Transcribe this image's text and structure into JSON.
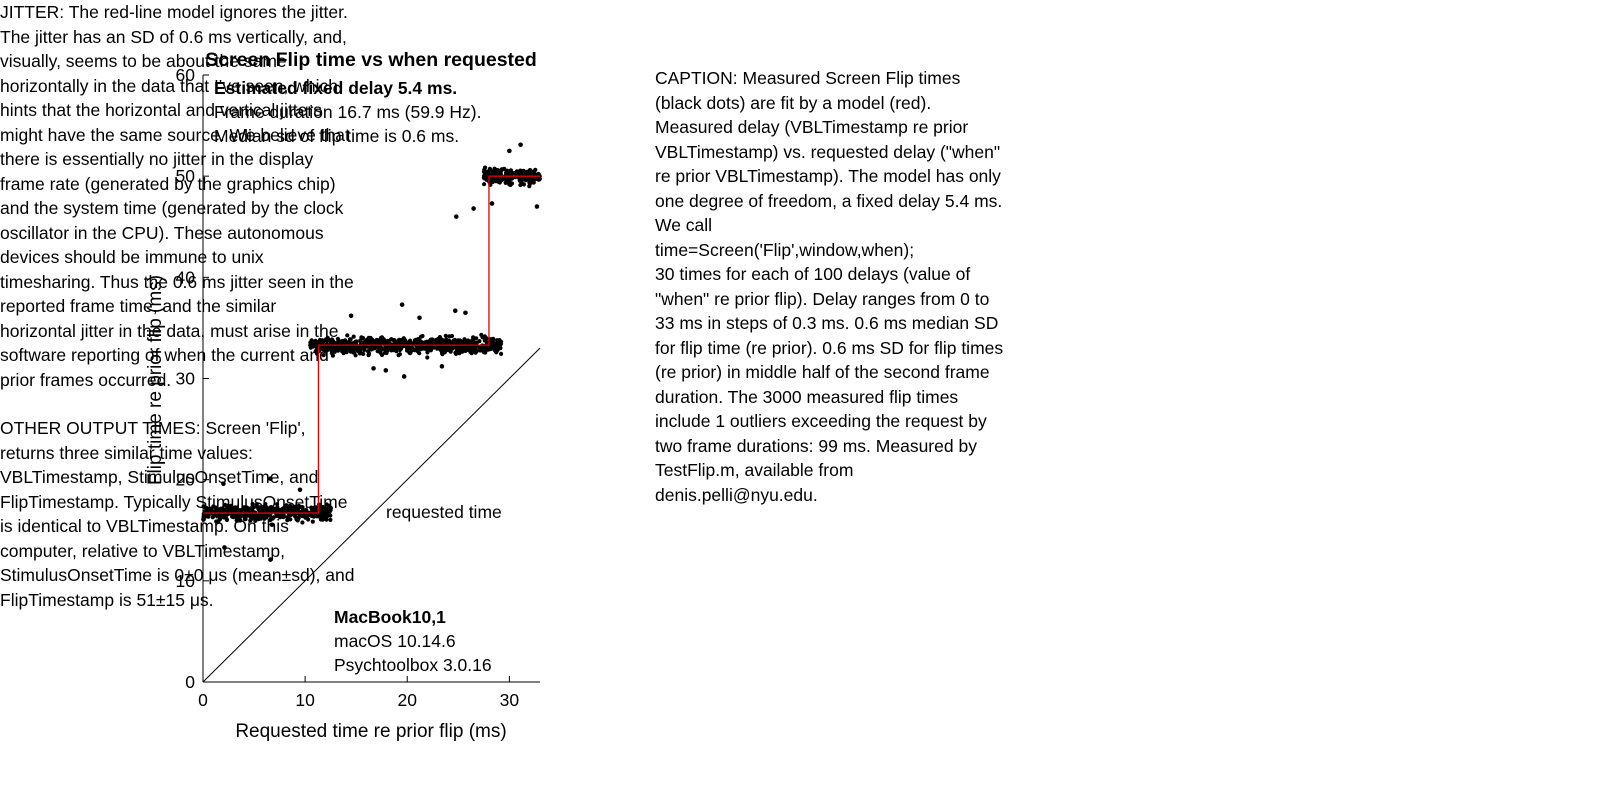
{
  "chart_data": {
    "type": "scatter",
    "title": "Screen Flip time vs when requested",
    "xlabel": "Requested time re prior flip (ms)",
    "ylabel": "Flip time re prior flip (ms)",
    "xlim": [
      0,
      33
    ],
    "ylim": [
      0,
      60
    ],
    "xticks": [
      0,
      10,
      20,
      30
    ],
    "yticks": [
      0,
      10,
      20,
      30,
      40,
      50,
      60
    ],
    "grid": false,
    "annotations": {
      "header_bold": "Estimated fixed delay 5.4 ms.",
      "header_line2": "Frame duration 16.7 ms (59.9 Hz).",
      "header_line3": "Median sd of flip time is 0.6 ms.",
      "diagonal_label": "requested time",
      "machine": "MacBook10,1",
      "os": "macOS 10.14.6",
      "software": "Psychtoolbox 3.0.16"
    },
    "series": [
      {
        "kind": "measured",
        "color": "#000000",
        "clusters": [
          {
            "x_range": [
              0,
              12.5
            ],
            "y_center": 16.7,
            "y_sd": 0.6
          },
          {
            "x_range": [
              10.5,
              29.2
            ],
            "y_center": 33.3,
            "y_sd": 0.6
          },
          {
            "x_range": [
              27.5,
              33.0
            ],
            "y_center": 50.0,
            "y_sd": 0.6
          }
        ],
        "outliers": [
          [
            2.0,
            19.6
          ],
          [
            6.6,
            20.1
          ],
          [
            2.1,
            13.3
          ],
          [
            6.6,
            12.1
          ],
          [
            9.5,
            19.0
          ],
          [
            12.5,
            17.2
          ],
          [
            14.5,
            36.2
          ],
          [
            19.5,
            37.3
          ],
          [
            21.2,
            36.0
          ],
          [
            24.7,
            36.7
          ],
          [
            25.7,
            36.5
          ],
          [
            16.7,
            31.0
          ],
          [
            19.7,
            30.2
          ],
          [
            23.4,
            31.2
          ],
          [
            17.9,
            30.8
          ],
          [
            24.8,
            46.0
          ],
          [
            26.5,
            46.8
          ],
          [
            31.1,
            53.1
          ],
          [
            30.0,
            52.5
          ],
          [
            32.7,
            47.0
          ],
          [
            28.3,
            47.3
          ]
        ]
      },
      {
        "kind": "model",
        "color": "#e00000",
        "points": [
          [
            0,
            16.7
          ],
          [
            11.3,
            16.7
          ],
          [
            11.3,
            33.3
          ],
          [
            28.0,
            33.3
          ],
          [
            28.0,
            50.0
          ],
          [
            33.0,
            50.0
          ]
        ]
      },
      {
        "kind": "requested-time-line",
        "color": "#000000",
        "points": [
          [
            0,
            0
          ],
          [
            33,
            33
          ]
        ]
      }
    ]
  },
  "caption_text": "CAPTION: Measured Screen Flip times\n(black dots) are fit by a model (red).\nMeasured delay (VBLTimestamp re prior\nVBLTimestamp) vs. requested delay (\"when\"\nre prior VBLTimestamp). The model has only\none degree of freedom, a fixed delay 5.4 ms.\nWe call\ntime=Screen('Flip',window,when);\n30 times for each of 100 delays (value of\n\"when\" re prior flip). Delay ranges from 0 to\n33 ms in steps of 0.3 ms. 0.6 ms median SD\nfor flip time (re prior). 0.6 ms SD for flip times\n(re prior) in middle half of the second frame\nduration. The 3000 measured flip times\ninclude 1 outliers exceeding the request by\ntwo frame durations: 99  ms. Measured by\nTestFlip.m, available from\ndenis.pelli@nyu.edu.",
  "jitter_text": "JITTER: The red-line model ignores the jitter.\nThe jitter has an SD of 0.6 ms vertically, and,\nvisually, seems to be about the same\nhorizontally in the data that I've seen, which\nhints that the horizontal and vertical jitters\nmight have the same source. We believe that\nthere is essentially no jitter in the display\nframe rate (generated by the graphics chip)\nand the system time (generated by the clock\noscillator in the CPU). These autonomous\ndevices should be immune to unix\ntimesharing. Thus the 0.6 ms jitter seen in the\nreported frame time, and the similar\nhorizontal jitter in the data, must arise in the\nsoftware reporting of when the current and\nprior frames occurred.",
  "other_output_text": "OTHER OUTPUT TIMES: Screen 'Flip',\nreturns three similar time values:\nVBLTimestamp, StimulusOnsetTime, and\nFlipTimestamp. Typically StimulusOnsetTime\nis identical to VBLTimestamp. On this\ncomputer, relative to VBLTimestamp,\nStimulusOnsetTime is 0±0 μs (mean±sd), and\nFlipTimestamp is 51±15 μs."
}
